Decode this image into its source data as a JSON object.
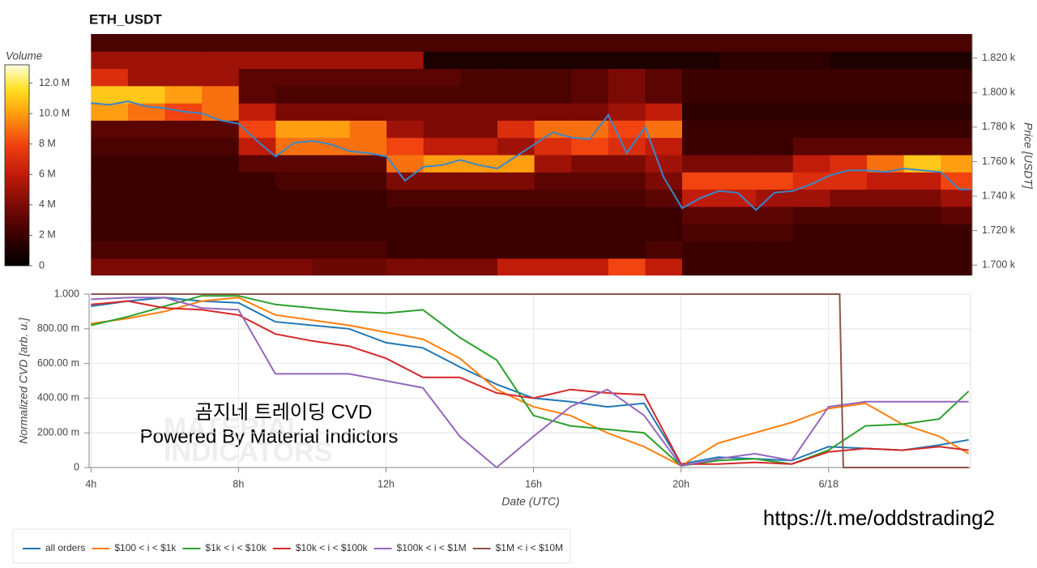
{
  "chart_data": [
    {
      "type": "heatmap",
      "title": "ETH_USDT",
      "ylabel": "Price [USDT]",
      "xlim": [
        3.95,
        27.85
      ],
      "ylim": [
        1694,
        1834
      ],
      "yticks": [
        {
          "value": 1700,
          "label": "1.700 k"
        },
        {
          "value": 1720,
          "label": "1.720 k"
        },
        {
          "value": 1740,
          "label": "1.740 k"
        },
        {
          "value": 1760,
          "label": "1.760 k"
        },
        {
          "value": 1780,
          "label": "1.780 k"
        },
        {
          "value": 1800,
          "label": "1.800 k"
        },
        {
          "value": 1820,
          "label": "1.820 k"
        }
      ],
      "colorbar": {
        "title": "Volume",
        "lim": [
          0,
          13.2
        ],
        "ticks": [
          0,
          {
            "value": 2,
            "label": "2 M"
          },
          {
            "value": 4,
            "label": "4 M"
          },
          {
            "value": 6,
            "label": "6 M"
          },
          {
            "value": 8,
            "label": "8 M"
          },
          {
            "value": 10,
            "label": "10.0 M"
          },
          {
            "value": 12,
            "label": "12.0 M"
          }
        ]
      },
      "xbins": [
        4,
        5,
        6,
        7,
        8,
        9,
        10,
        11,
        12,
        13,
        14,
        15,
        16,
        17,
        18,
        19,
        20,
        21,
        22,
        23,
        24,
        25,
        26,
        27,
        28
      ],
      "ybins": [
        1694,
        1704,
        1714,
        1724,
        1734,
        1744,
        1754,
        1764,
        1774,
        1784,
        1794,
        1804,
        1814,
        1824,
        1834
      ],
      "z": [
        [
          4,
          4,
          4,
          4,
          4,
          4,
          3.5,
          3.5,
          4,
          4,
          4,
          6,
          6,
          6,
          8,
          6,
          2,
          2,
          2,
          2,
          2,
          2,
          2,
          2
        ],
        [
          2.5,
          2.5,
          2.5,
          2.5,
          2.5,
          2.5,
          2.5,
          2.5,
          2,
          2,
          2,
          2,
          2,
          2,
          2,
          2.5,
          2,
          2,
          2,
          2,
          2,
          2,
          2,
          2
        ],
        [
          2,
          2,
          2,
          2,
          2,
          2,
          2,
          2,
          2,
          2,
          2,
          2,
          2,
          2,
          2,
          2,
          2.5,
          2.5,
          2.5,
          2,
          2,
          2,
          2,
          2
        ],
        [
          2,
          2,
          2,
          2,
          2,
          2,
          2,
          2,
          2,
          2,
          2,
          2,
          2,
          2,
          2,
          2,
          3,
          3,
          3,
          2.5,
          2.5,
          2.5,
          2.5,
          3
        ],
        [
          2,
          2,
          2,
          2,
          2,
          2,
          2,
          2,
          2.5,
          2.5,
          2.5,
          2.5,
          2.5,
          2.5,
          2.5,
          3,
          6,
          6,
          5,
          5,
          4,
          4,
          4,
          5
        ],
        [
          2,
          2,
          2,
          2,
          2,
          2.5,
          2.5,
          2.5,
          4,
          4,
          4,
          4,
          3,
          3,
          3,
          4,
          8,
          8,
          8,
          7,
          7,
          6,
          6,
          8
        ],
        [
          2,
          2,
          2,
          2,
          3,
          3,
          3,
          3,
          9,
          10,
          10,
          10,
          5,
          4,
          4,
          5,
          4,
          4,
          4,
          6,
          7,
          9,
          11,
          10
        ],
        [
          2.5,
          2.5,
          2.5,
          2.5,
          6,
          9,
          9,
          9,
          8,
          6,
          6,
          5,
          7,
          8,
          7,
          6,
          2,
          2,
          2,
          3,
          3,
          3,
          3,
          3
        ],
        [
          3,
          3,
          3,
          3,
          8,
          10,
          10,
          9,
          5,
          4,
          4,
          7,
          9,
          9,
          8,
          9,
          2,
          2,
          2,
          2,
          2,
          2,
          2,
          2
        ],
        [
          10,
          9,
          8,
          9,
          6,
          4,
          4,
          4,
          4,
          4,
          4,
          4,
          4,
          4,
          5,
          6,
          1.5,
          1.5,
          1.5,
          1.5,
          1.5,
          1.5,
          1.5,
          1.5
        ],
        [
          11,
          11,
          10,
          9,
          3,
          2.5,
          2.5,
          2.5,
          2.5,
          2.5,
          2.5,
          2.5,
          2.5,
          3,
          4,
          3,
          2,
          2,
          2,
          2,
          2,
          2,
          2,
          2
        ],
        [
          7,
          5,
          5,
          5,
          3,
          3,
          3,
          3,
          3,
          3,
          2.5,
          2.5,
          2.5,
          3,
          4,
          3,
          2,
          2,
          2,
          2,
          2,
          2,
          2,
          2
        ],
        [
          5,
          5,
          5,
          5,
          5,
          5,
          5,
          5,
          5,
          1,
          1,
          1,
          1,
          1,
          1,
          1,
          1,
          1.5,
          1.5,
          1.5,
          1,
          1,
          1,
          1
        ],
        [
          2.5,
          2.5,
          2.5,
          2.5,
          2.5,
          2.5,
          2.5,
          2.5,
          2.5,
          2.5,
          2.5,
          2.5,
          2.5,
          2.5,
          2.5,
          2.5,
          2.5,
          2.5,
          2.5,
          2.5,
          2.5,
          2.5,
          2.5,
          2.5
        ]
      ],
      "price_line": {
        "color": "#3a87c8",
        "x": [
          4,
          4.5,
          5,
          5.5,
          6,
          6.5,
          7,
          7.5,
          8,
          8.5,
          9,
          9.5,
          10,
          10.5,
          11,
          11.5,
          12,
          12.5,
          13,
          13.5,
          14,
          14.5,
          15,
          15.5,
          16,
          16.5,
          17,
          17.5,
          18,
          18.5,
          19,
          19.5,
          20,
          20.5,
          21,
          21.5,
          22,
          22.5,
          23,
          23.5,
          24,
          24.5,
          25,
          25.5,
          26,
          26.5,
          27,
          27.5,
          27.8
        ],
        "values": [
          1794,
          1793,
          1795,
          1792,
          1791,
          1789,
          1788,
          1784,
          1782,
          1772,
          1763,
          1771,
          1772,
          1770,
          1766,
          1765,
          1763,
          1749,
          1757,
          1758,
          1761,
          1758,
          1756,
          1763,
          1770,
          1777,
          1774,
          1773,
          1787,
          1765,
          1780,
          1751,
          1733,
          1739,
          1743,
          1742,
          1732,
          1742,
          1743,
          1747,
          1752,
          1755,
          1755,
          1754,
          1756,
          1755,
          1754,
          1744,
          1744
        ]
      }
    },
    {
      "type": "line",
      "ylabel": "Normalized CVD [arb. u.]",
      "xlabel": "Date (UTC)",
      "xlim": [
        3.95,
        27.85
      ],
      "ylim": [
        0,
        1
      ],
      "grid": true,
      "legend": "bottom-left",
      "yticks": [
        0,
        {
          "value": 0.2,
          "label": "200.00 m"
        },
        {
          "value": 0.4,
          "label": "400.00 m"
        },
        {
          "value": 0.6,
          "label": "600.00 m"
        },
        {
          "value": 0.8,
          "label": "800.00 m"
        },
        {
          "value": 1,
          "label": "1.000"
        }
      ],
      "xticks": [
        {
          "value": 4,
          "label": "4h"
        },
        {
          "value": 8,
          "label": "8h"
        },
        {
          "value": 12,
          "label": "12h"
        },
        {
          "value": 16,
          "label": "16h"
        },
        {
          "value": 20,
          "label": "20h"
        },
        {
          "value": 24,
          "label": "6/18"
        }
      ],
      "x": [
        4,
        5,
        6,
        7,
        8,
        9,
        10,
        11,
        12,
        13,
        14,
        15,
        16,
        17,
        18,
        19,
        20,
        21,
        22,
        23,
        24,
        25,
        26,
        27,
        27.8
      ],
      "series": [
        {
          "name": "all orders",
          "color": "#1f77b4",
          "values": [
            0.93,
            0.96,
            0.98,
            0.96,
            0.95,
            0.84,
            0.82,
            0.8,
            0.72,
            0.69,
            0.58,
            0.48,
            0.4,
            0.38,
            0.35,
            0.37,
            0.02,
            0.06,
            0.05,
            0.04,
            0.12,
            0.11,
            0.1,
            0.13,
            0.16
          ]
        },
        {
          "name": "$100 < i < $1k",
          "color": "#ff7f0e",
          "values": [
            0.83,
            0.86,
            0.9,
            0.96,
            0.98,
            0.88,
            0.85,
            0.82,
            0.78,
            0.74,
            0.63,
            0.45,
            0.35,
            0.3,
            0.2,
            0.12,
            0.01,
            0.14,
            0.2,
            0.26,
            0.34,
            0.37,
            0.25,
            0.18,
            0.08
          ]
        },
        {
          "name": "$1k < i < $10k",
          "color": "#2ca02c",
          "values": [
            0.82,
            0.87,
            0.93,
            0.99,
            0.99,
            0.94,
            0.92,
            0.9,
            0.89,
            0.91,
            0.75,
            0.62,
            0.3,
            0.24,
            0.22,
            0.2,
            0.01,
            0.04,
            0.05,
            0.02,
            0.1,
            0.24,
            0.25,
            0.28,
            0.44
          ]
        },
        {
          "name": "$10k < i < $100k",
          "color": "#d62728",
          "values": [
            0.94,
            0.96,
            0.92,
            0.91,
            0.88,
            0.77,
            0.73,
            0.7,
            0.63,
            0.52,
            0.52,
            0.43,
            0.4,
            0.45,
            0.43,
            0.42,
            0.02,
            0.02,
            0.03,
            0.02,
            0.09,
            0.11,
            0.1,
            0.12,
            0.1
          ]
        },
        {
          "name": "$100k < i < $1M",
          "color": "#9467bd",
          "values": [
            0.97,
            0.98,
            0.98,
            0.92,
            0.91,
            0.54,
            0.54,
            0.54,
            0.5,
            0.46,
            0.18,
            0,
            0.18,
            0.35,
            0.45,
            0.3,
            0.01,
            0.05,
            0.08,
            0.04,
            0.35,
            0.38,
            0.38,
            0.38,
            0.38
          ]
        },
        {
          "name": "$1M < i < $10M",
          "color": "#8c564b",
          "x": [
            4,
            24.3,
            24.4,
            27.8
          ],
          "values": [
            1,
            1,
            0,
            0
          ]
        }
      ],
      "annotations": [
        "곰지네 트레이딩 CVD",
        "Powered By Material Indictors"
      ],
      "watermark": [
        "MATERIAL",
        "INDICATORS"
      ]
    }
  ],
  "footer_url": "https://t.me/oddstrading2"
}
